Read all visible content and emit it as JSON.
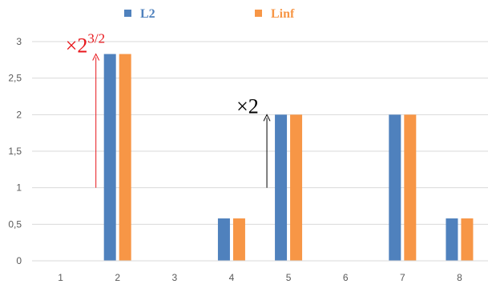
{
  "chart_data": {
    "type": "bar",
    "title": "",
    "xlabel": "",
    "ylabel": "",
    "categories": [
      "1",
      "2",
      "3",
      "4",
      "5",
      "6",
      "7",
      "8"
    ],
    "series": [
      {
        "name": "L2",
        "color": "#4f81bd",
        "values": [
          0,
          2.83,
          0,
          0.58,
          2.0,
          0,
          2.0,
          0.58
        ]
      },
      {
        "name": "Linf",
        "color": "#f79646",
        "values": [
          0,
          2.83,
          0,
          0.58,
          2.0,
          0,
          2.0,
          0.58
        ]
      }
    ],
    "ylim": [
      0,
      3
    ],
    "yticks": [
      "0",
      "0,5",
      "1",
      "1,5",
      "2",
      "2,5",
      "3"
    ],
    "grid": true,
    "legend_position": "top",
    "annotations": [
      {
        "text": "×2",
        "superscript": "3/2",
        "color": "#e8161b",
        "category": "2",
        "y_from": 1.0,
        "y_to": 2.83
      },
      {
        "text": "×2",
        "superscript": "",
        "color": "#000000",
        "category": "5",
        "y_from": 1.0,
        "y_to": 2.0
      }
    ]
  }
}
